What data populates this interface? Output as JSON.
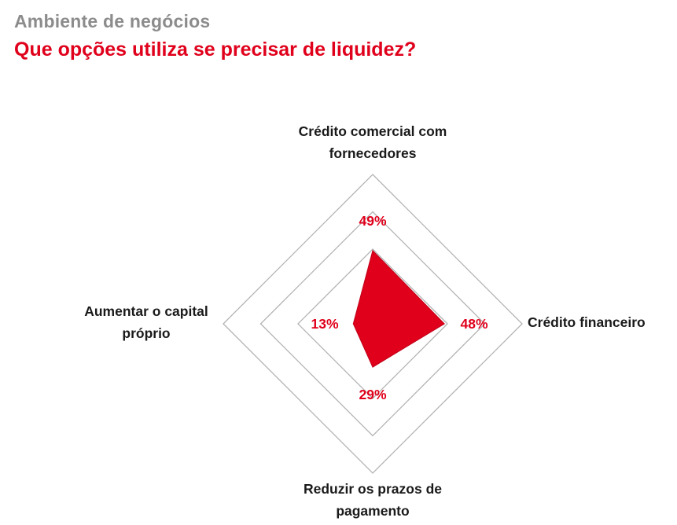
{
  "header": {
    "section": "Ambiente de negócios",
    "title": "Que opções utiliza se precisar de liquidez?"
  },
  "colors": {
    "section_text": "#8c8c8c",
    "title_text": "#e0001b",
    "series_fill": "#e0001b",
    "grid": "#b3b3b3"
  },
  "chart_data": {
    "type": "radar",
    "title": "Que opções utiliza se precisar de liquidez?",
    "axes": [
      {
        "label_lines": [
          "Crédito comercial com",
          "fornecedores"
        ],
        "value": 49,
        "value_label": "49%"
      },
      {
        "label_lines": [
          "Crédito financeiro"
        ],
        "value": 48,
        "value_label": "48%"
      },
      {
        "label_lines": [
          "Reduzir os prazos de",
          "pagamento"
        ],
        "value": 29,
        "value_label": "29%"
      },
      {
        "label_lines": [
          "Aumentar o capital",
          "próprio"
        ],
        "value": 13,
        "value_label": "13%"
      }
    ],
    "range": [
      0,
      100
    ],
    "grid_levels": 3,
    "grid": true,
    "legend": "none"
  }
}
